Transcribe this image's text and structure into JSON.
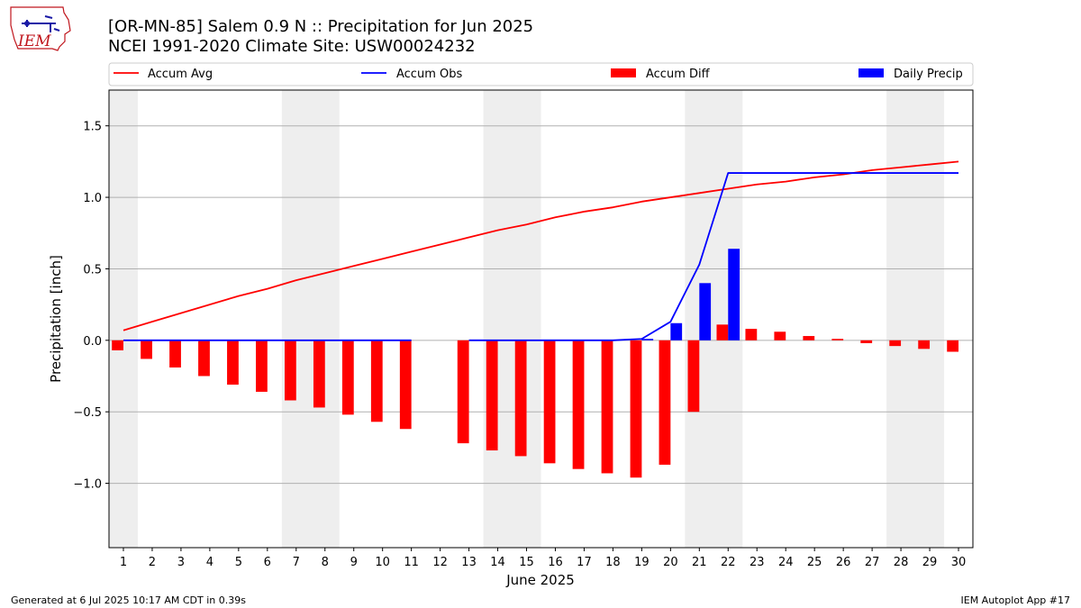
{
  "header": {
    "title_line1": "[OR-MN-85] Salem 0.9 N :: Precipitation for Jun 2025",
    "title_line2": "NCEI 1991-2020 Climate Site: USW00024232"
  },
  "logo": {
    "text": "IEM"
  },
  "footer": {
    "left": "Generated at 6 Jul 2025 10:17 AM CDT in 0.39s",
    "right": "IEM Autoplot App #17"
  },
  "colors": {
    "avg": "#ff0000",
    "obs": "#0000ff",
    "diff": "#ff0000",
    "daily": "#0000ff",
    "weekend_band": "#eeeeee",
    "grid": "#b0b0b0"
  },
  "chart_data": {
    "type": "bar",
    "xlabel": "June 2025",
    "ylabel": "Precipitation [inch]",
    "xlim": [
      0.5,
      30.5
    ],
    "ylim": [
      -1.45,
      1.75
    ],
    "grid": "horizontal",
    "legend_placement": "top",
    "x": [
      1,
      2,
      3,
      4,
      5,
      6,
      7,
      8,
      9,
      10,
      11,
      12,
      13,
      14,
      15,
      16,
      17,
      18,
      19,
      20,
      21,
      22,
      23,
      24,
      25,
      26,
      27,
      28,
      29,
      30
    ],
    "y_ticks": [
      -1.0,
      -0.5,
      0.0,
      0.5,
      1.0,
      1.5
    ],
    "y_tick_labels": [
      "−1.0",
      "−0.5",
      "0.0",
      "0.5",
      "1.0",
      "1.5"
    ],
    "weekend_bands": [
      [
        0.5,
        1.5
      ],
      [
        6.5,
        8.5
      ],
      [
        13.5,
        15.5
      ],
      [
        20.5,
        22.5
      ],
      [
        27.5,
        29.5
      ]
    ],
    "legend": [
      "Accum Avg",
      "Accum Obs",
      "Accum Diff",
      "Daily Precip"
    ],
    "series": [
      {
        "name": "Accum Avg",
        "kind": "line",
        "values": [
          0.07,
          0.13,
          0.19,
          0.25,
          0.31,
          0.36,
          0.42,
          0.47,
          0.52,
          0.57,
          0.62,
          0.67,
          0.72,
          0.77,
          0.81,
          0.86,
          0.9,
          0.93,
          0.97,
          1.0,
          1.03,
          1.06,
          1.09,
          1.11,
          1.14,
          1.16,
          1.19,
          1.21,
          1.23,
          1.25
        ]
      },
      {
        "name": "Accum Obs",
        "kind": "line",
        "values": [
          0.0,
          0.0,
          0.0,
          0.0,
          0.0,
          0.0,
          0.0,
          0.0,
          0.0,
          0.0,
          0.0,
          null,
          0.0,
          0.0,
          0.0,
          0.0,
          0.0,
          0.0,
          0.01,
          0.13,
          0.53,
          1.17,
          1.17,
          1.17,
          1.17,
          1.17,
          1.17,
          1.17,
          1.17,
          1.17
        ]
      },
      {
        "name": "Accum Diff",
        "kind": "bar",
        "values": [
          -0.07,
          -0.13,
          -0.19,
          -0.25,
          -0.31,
          -0.36,
          -0.42,
          -0.47,
          -0.52,
          -0.57,
          -0.62,
          null,
          -0.72,
          -0.77,
          -0.81,
          -0.86,
          -0.9,
          -0.93,
          -0.96,
          -0.87,
          -0.5,
          0.11,
          0.08,
          0.06,
          0.03,
          0.01,
          -0.02,
          -0.04,
          -0.06,
          -0.08
        ]
      },
      {
        "name": "Daily Precip",
        "kind": "bar",
        "values": [
          0,
          0,
          0,
          0,
          0,
          0,
          0,
          0,
          0,
          0,
          0,
          0,
          0,
          0,
          0,
          0,
          0,
          0,
          0.01,
          0.12,
          0.4,
          0.64,
          0,
          0,
          0,
          0,
          0,
          0,
          0,
          0
        ]
      }
    ]
  }
}
